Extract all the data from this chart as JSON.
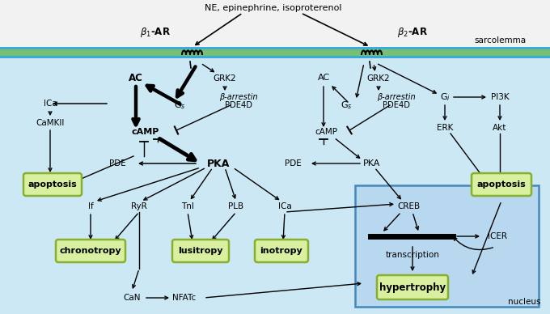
{
  "bg_cytoplasm": "#cce8f4",
  "bg_extra": "#eeeeee",
  "sarco_blue": "#3aacdc",
  "sarco_green": "#78c070",
  "node_fill": "#d8f0a0",
  "node_edge": "#88b030",
  "nucleus_fill": "#b8d8f0",
  "nucleus_edge": "#4488bb",
  "title": "NE, epinephrine, isoproterenol",
  "sarco_label": "sarcolemma",
  "nucleus_label": "nucleus"
}
